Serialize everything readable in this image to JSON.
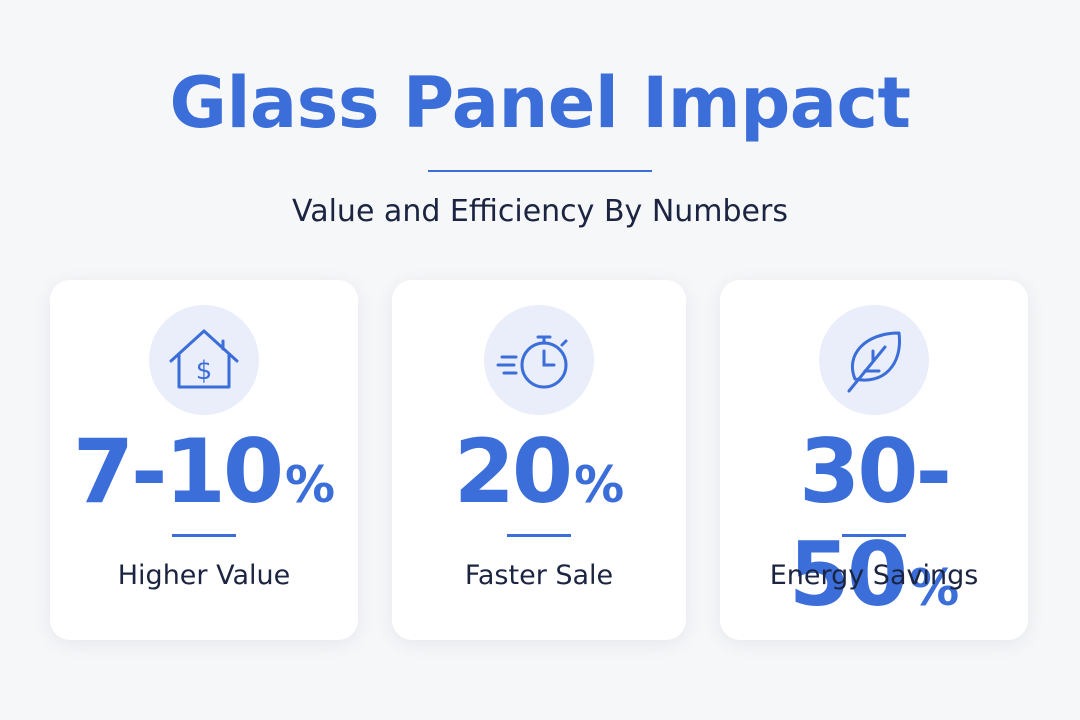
{
  "header": {
    "title": "Glass Panel Impact",
    "subtitle": "Value and Efficiency By Numbers"
  },
  "cards": [
    {
      "value": "7-10",
      "unit": "%",
      "label": "Higher Value"
    },
    {
      "value": "20",
      "unit": "%",
      "label": "Faster Sale"
    },
    {
      "value": "30-50",
      "unit": "%",
      "label": "Energy Savings"
    }
  ]
}
